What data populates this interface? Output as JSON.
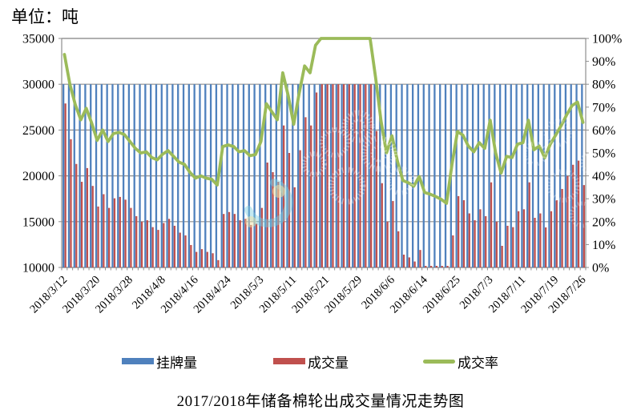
{
  "unit_label": "单位：吨",
  "title": "2017/2018年储备棉轮出成交量情况走势图",
  "legend": [
    {
      "label": "挂牌量",
      "color": "#4F81BD",
      "swatch": "bar"
    },
    {
      "label": "成交量",
      "color": "#C0504D",
      "swatch": "bar"
    },
    {
      "label": "成交率",
      "color": "#9BBB59",
      "swatch": "line"
    }
  ],
  "watermark": {
    "description": "faint translucent circular logo pattern over plot area",
    "colors": {
      "rings": "#FFFFFF",
      "swirl": "#7CCFE0",
      "dots": "#EFE2A6"
    }
  },
  "chart_data": {
    "type": "bar+line combo",
    "title": "2017/2018年储备棉轮出成交量情况走势图",
    "grid": true,
    "legend_position": "bottom",
    "plot_colors": {
      "axis": "#8E8E8E",
      "gridline": "#8E8E8E",
      "background": "#FFFFFF"
    },
    "left_axis": {
      "min": 10000,
      "max": 35000,
      "step": 5000,
      "unit": "吨",
      "tick_values": [
        35000,
        30000,
        25000,
        20000,
        15000,
        10000
      ],
      "tick_labels": [
        "35000",
        "30000",
        "25000",
        "20000",
        "15000",
        "10000"
      ]
    },
    "right_axis": {
      "min": 0,
      "max": 100,
      "step": 10,
      "format": "percent",
      "tick_labels": [
        "100%",
        "90%",
        "80%",
        "70%",
        "60%",
        "50%",
        "40%",
        "30%",
        "20%",
        "10%",
        "0%"
      ]
    },
    "x_tick_labels": [
      "2018/3/12",
      "2018/3/20",
      "2018/3/28",
      "2018/4/8",
      "2018/4/16",
      "2018/4/24",
      "2018/5/3",
      "2018/5/11",
      "2018/5/21",
      "2018/5/29",
      "2018/6/6",
      "2018/6/14",
      "2018/6/25",
      "2018/7/3",
      "2018/7/11",
      "2018/7/19",
      "2018/7/26"
    ],
    "x_tick_indices": [
      0,
      6,
      12,
      18,
      24,
      30,
      36,
      42,
      48,
      54,
      60,
      66,
      72,
      78,
      84,
      90,
      95
    ],
    "x": [
      "2018/3/12",
      "2018/3/13",
      "2018/3/14",
      "2018/3/15",
      "2018/3/16",
      "2018/3/19",
      "2018/3/20",
      "2018/3/21",
      "2018/3/22",
      "2018/3/23",
      "2018/3/26",
      "2018/3/27",
      "2018/3/28",
      "2018/3/29",
      "2018/3/30",
      "2018/4/2",
      "2018/4/3",
      "2018/4/4",
      "2018/4/8",
      "2018/4/9",
      "2018/4/10",
      "2018/4/11",
      "2018/4/12",
      "2018/4/13",
      "2018/4/16",
      "2018/4/17",
      "2018/4/18",
      "2018/4/19",
      "2018/4/20",
      "2018/4/23",
      "2018/4/24",
      "2018/4/25",
      "2018/4/26",
      "2018/4/27",
      "2018/4/28",
      "2018/5/2",
      "2018/5/3",
      "2018/5/4",
      "2018/5/7",
      "2018/5/8",
      "2018/5/9",
      "2018/5/10",
      "2018/5/11",
      "2018/5/14",
      "2018/5/15",
      "2018/5/16",
      "2018/5/17",
      "2018/5/18",
      "2018/5/21",
      "2018/5/22",
      "2018/5/23",
      "2018/5/24",
      "2018/5/25",
      "2018/5/28",
      "2018/5/29",
      "2018/5/30",
      "2018/5/31",
      "2018/6/1",
      "2018/6/4",
      "2018/6/5",
      "2018/6/6",
      "2018/6/7",
      "2018/6/8",
      "2018/6/11",
      "2018/6/12",
      "2018/6/13",
      "2018/6/14",
      "2018/6/15",
      "2018/6/19",
      "2018/6/20",
      "2018/6/21",
      "2018/6/22",
      "2018/6/25",
      "2018/6/26",
      "2018/6/27",
      "2018/6/28",
      "2018/6/29",
      "2018/7/2",
      "2018/7/3",
      "2018/7/4",
      "2018/7/5",
      "2018/7/6",
      "2018/7/9",
      "2018/7/10",
      "2018/7/11",
      "2018/7/12",
      "2018/7/13",
      "2018/7/16",
      "2018/7/17",
      "2018/7/18",
      "2018/7/19",
      "2018/7/20",
      "2018/7/23",
      "2018/7/24",
      "2018/7/25",
      "2018/7/26"
    ],
    "series": [
      {
        "name": "挂牌量",
        "type": "bar",
        "axis": "left",
        "color": "#4F81BD",
        "values": [
          30000,
          30000,
          30000,
          30000,
          30000,
          30000,
          30000,
          30000,
          30000,
          30000,
          30000,
          30000,
          30000,
          30000,
          30000,
          30000,
          30000,
          30000,
          30000,
          30000,
          30000,
          30000,
          30000,
          30000,
          30000,
          30000,
          30000,
          30000,
          30000,
          30000,
          30000,
          30000,
          30000,
          30000,
          30000,
          30000,
          30000,
          30000,
          30000,
          30000,
          30000,
          30000,
          30000,
          30000,
          30000,
          30000,
          30000,
          30000,
          30000,
          30000,
          30000,
          30000,
          30000,
          30000,
          30000,
          30000,
          30000,
          30000,
          30000,
          30000,
          30000,
          30000,
          30000,
          30000,
          30000,
          30000,
          30000,
          30000,
          30000,
          30000,
          30000,
          30000,
          30000,
          30000,
          30000,
          30000,
          30000,
          30000,
          30000,
          30000,
          30000,
          30000,
          30000,
          30000,
          30000,
          30000,
          30000,
          30000,
          30000,
          30000,
          30000,
          30000,
          30000,
          30000,
          30000,
          30000
        ]
      },
      {
        "name": "成交量",
        "type": "bar",
        "axis": "left",
        "color": "#C0504D",
        "values": [
          27900,
          24000,
          21300,
          19350,
          20850,
          18900,
          16650,
          18000,
          16500,
          17550,
          17700,
          17400,
          16500,
          15600,
          15000,
          15150,
          14400,
          14100,
          14850,
          15300,
          14550,
          13800,
          13500,
          12450,
          11700,
          12000,
          11700,
          11550,
          10800,
          15840,
          16050,
          15840,
          15150,
          15300,
          14640,
          14790,
          16500,
          21450,
          20400,
          19350,
          25500,
          22500,
          18750,
          22800,
          26400,
          25500,
          29100,
          30000,
          30000,
          30000,
          30000,
          30000,
          30000,
          30000,
          30000,
          30000,
          30000,
          24900,
          19200,
          15000,
          17250,
          13950,
          11400,
          11100,
          10650,
          11910,
          9810,
          9600,
          9300,
          8940,
          8400,
          13500,
          17790,
          17340,
          15900,
          15150,
          16350,
          15600,
          19290,
          15000,
          12360,
          14550,
          14400,
          16140,
          16350,
          19290,
          15420,
          15900,
          14370,
          16140,
          17340,
          18570,
          19980,
          21210,
          21660,
          18990
        ]
      },
      {
        "name": "成交率",
        "type": "line",
        "axis": "right",
        "color": "#9BBB59",
        "values": [
          93,
          80,
          71,
          64.5,
          69.5,
          63,
          55.5,
          60,
          55,
          58.5,
          59,
          58,
          55,
          52,
          50,
          50.5,
          48,
          47,
          49.5,
          51,
          48.5,
          46,
          45,
          41.5,
          39,
          40,
          39,
          38.5,
          36,
          52.8,
          53.5,
          52.8,
          50.5,
          51,
          48.8,
          49.3,
          55,
          71.5,
          68,
          64.5,
          85,
          75,
          62.5,
          76,
          88,
          85,
          97,
          100,
          100,
          100,
          100,
          100,
          100,
          100,
          100,
          100,
          100,
          83,
          64,
          50,
          57.5,
          46.5,
          38,
          37,
          35.5,
          39.7,
          32.7,
          32,
          31,
          29.8,
          28,
          45,
          59.3,
          57.8,
          53,
          50.5,
          54.5,
          52,
          64.3,
          50,
          41.2,
          48.5,
          48,
          53.8,
          54.5,
          64.3,
          51.4,
          53,
          47.9,
          53.8,
          57.8,
          61.9,
          66.6,
          70.7,
          72.2,
          63.3
        ]
      }
    ]
  }
}
